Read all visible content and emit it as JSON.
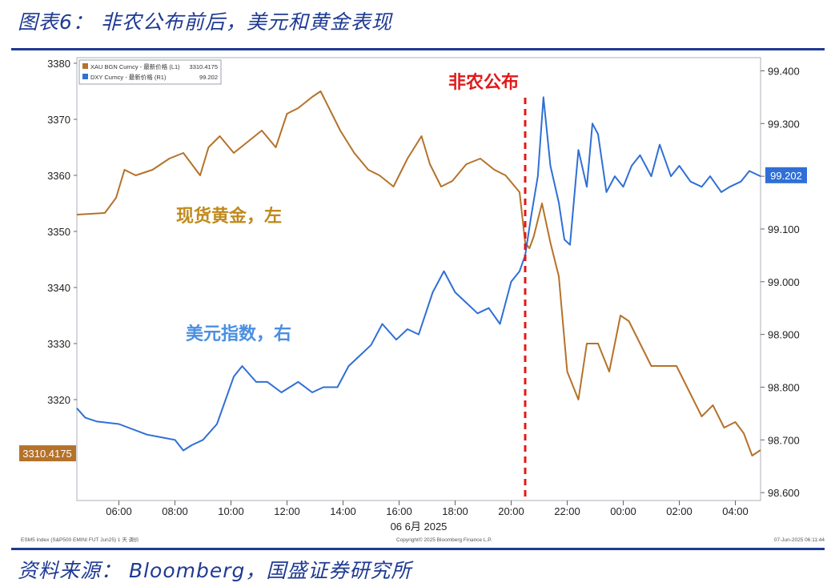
{
  "figure_title": "图表6：  非农公布前后，美元和黄金表现",
  "source_text": "资料来源：  Bloomberg，国盛证券研究所",
  "colors": {
    "gold": "#b5722a",
    "dxy": "#2f6fd6",
    "event": "#e01a1a",
    "frame": "#1f3a93",
    "gold_label": "#c08a1e",
    "dxy_label": "#4a8fe0"
  },
  "chart_data": {
    "type": "line",
    "title": "",
    "x_ticks": [
      "06:00",
      "08:00",
      "10:00",
      "12:00",
      "14:00",
      "16:00",
      "18:00",
      "20:00",
      "22:00",
      "00:00",
      "02:00",
      "04:00"
    ],
    "x_date_label": "06 6月 2025",
    "x_range_hours": [
      4.5,
      28.9
    ],
    "left_axis": {
      "ticks": [
        "3380",
        "3370",
        "3360",
        "3350",
        "3340",
        "3330",
        "3320"
      ],
      "ylim": [
        3302,
        3381
      ]
    },
    "right_axis": {
      "ticks": [
        "99.400",
        "99.300",
        "99.200",
        "99.100",
        "99.000",
        "98.900",
        "98.800",
        "98.700",
        "98.600"
      ],
      "ylim": [
        98.585,
        99.425
      ]
    },
    "legend": {
      "placement": "top-left",
      "entries": [
        {
          "name": "XAU BGN Curncy - 最新价格 (L1)",
          "value": "3310.4175"
        },
        {
          "name": "DXY Curncy - 最新价格 (R1)",
          "value": "99.202"
        }
      ]
    },
    "last_value_tags": {
      "left": "3310.4175",
      "right": "99.202"
    },
    "annotations": {
      "event_label": "非农公布",
      "event_x": 20.5,
      "gold_label": "现货黄金，左",
      "dxy_label": "美元指数，右"
    },
    "footer_left": "ESM5 Index (S&P500 EMINI FUT Jun25) 1 天 调价",
    "footer_center": "Copyright© 2025 Bloomberg Finance L.P.",
    "footer_right": "07-Jun-2025 06:11:44",
    "series": [
      {
        "name": "XAU BGN Curncy - 最新价格 (L1)",
        "axis": "left",
        "x": [
          4.5,
          5.5,
          5.9,
          6.2,
          6.6,
          7.2,
          7.8,
          8.3,
          8.9,
          9.2,
          9.6,
          10.1,
          10.6,
          11.1,
          11.6,
          12.0,
          12.4,
          12.9,
          13.2,
          13.6,
          13.9,
          14.4,
          14.9,
          15.3,
          15.8,
          16.3,
          16.8,
          17.1,
          17.5,
          17.9,
          18.4,
          18.9,
          19.4,
          19.8,
          20.3,
          20.5,
          20.65,
          20.8,
          21.1,
          21.4,
          21.7,
          22.0,
          22.4,
          22.7,
          23.1,
          23.5,
          23.9,
          24.2,
          24.6,
          25.0,
          25.5,
          25.9,
          26.3,
          26.8,
          27.2,
          27.6,
          28.0,
          28.3,
          28.6,
          28.9
        ],
        "y": [
          3353,
          3353.3,
          3356,
          3361,
          3360,
          3361,
          3363,
          3364,
          3360,
          3365,
          3367,
          3364,
          3366,
          3368,
          3365,
          3371,
          3372,
          3374,
          3375,
          3371,
          3368,
          3364,
          3361,
          3360,
          3358,
          3363,
          3367,
          3362,
          3358,
          3359,
          3362,
          3363,
          3361,
          3360,
          3357,
          3348,
          3347,
          3349,
          3355,
          3348,
          3342,
          3325,
          3320,
          3330,
          3330,
          3325,
          3335,
          3334,
          3330,
          3326,
          3326,
          3326,
          3322,
          3317,
          3319,
          3315,
          3316,
          3314,
          3310,
          3311
        ]
      },
      {
        "name": "DXY Curncy - 最新价格 (R1)",
        "axis": "right",
        "x": [
          4.5,
          4.8,
          5.2,
          6.0,
          7.0,
          7.5,
          8.0,
          8.3,
          8.6,
          9.0,
          9.5,
          10.1,
          10.4,
          10.9,
          11.3,
          11.8,
          12.4,
          12.9,
          13.3,
          13.8,
          14.2,
          14.6,
          15.0,
          15.4,
          15.9,
          16.3,
          16.7,
          17.2,
          17.6,
          18.0,
          18.4,
          18.8,
          19.2,
          19.6,
          20.0,
          20.3,
          20.5,
          20.7,
          20.95,
          21.15,
          21.4,
          21.7,
          21.9,
          22.1,
          22.4,
          22.7,
          22.9,
          23.1,
          23.4,
          23.7,
          24.0,
          24.3,
          24.6,
          25.0,
          25.3,
          25.7,
          26.0,
          26.4,
          26.8,
          27.1,
          27.5,
          27.8,
          28.2,
          28.5,
          28.9
        ],
        "y": [
          98.76,
          98.742,
          98.735,
          98.73,
          98.71,
          98.705,
          98.7,
          98.68,
          98.69,
          98.7,
          98.73,
          98.82,
          98.84,
          98.81,
          98.81,
          98.79,
          98.81,
          98.79,
          98.8,
          98.8,
          98.84,
          98.86,
          98.88,
          98.92,
          98.89,
          98.91,
          98.9,
          98.98,
          99.02,
          98.98,
          98.96,
          98.94,
          98.95,
          98.92,
          99.0,
          99.02,
          99.05,
          99.12,
          99.2,
          99.35,
          99.22,
          99.15,
          99.08,
          99.07,
          99.25,
          99.18,
          99.3,
          99.28,
          99.17,
          99.2,
          99.18,
          99.22,
          99.24,
          99.2,
          99.26,
          99.2,
          99.22,
          99.19,
          99.18,
          99.2,
          99.17,
          99.18,
          99.19,
          99.21,
          99.2
        ]
      }
    ]
  }
}
